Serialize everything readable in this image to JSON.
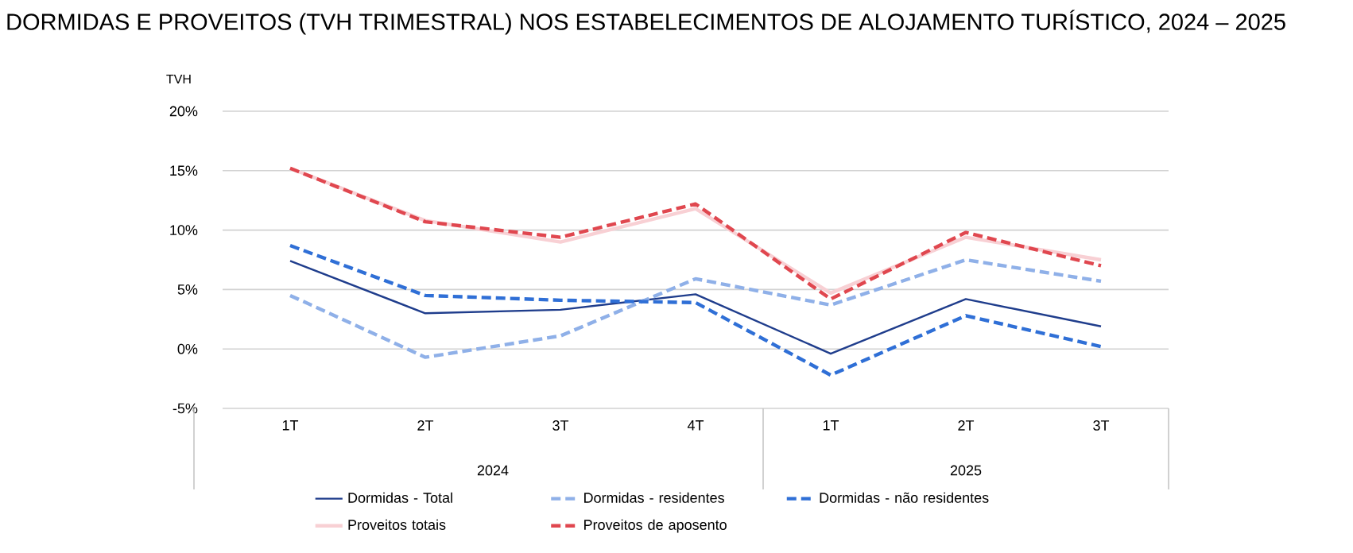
{
  "chart_data": {
    "type": "line",
    "title": "DORMIDAS E PROVEITOS (TVH TRIMESTRAL) NOS ESTABELECIMENTOS DE ALOJAMENTO TURÍSTICO, 2024 – 2025",
    "ylabel": "TVH",
    "categories": [
      "1T",
      "2T",
      "3T",
      "4T",
      "1T",
      "2T",
      "3T"
    ],
    "annotations": [
      "2024",
      "2025"
    ],
    "series": [
      {
        "name": "Dormidas - Total",
        "color": "#1f3d8c",
        "line_style": "solid",
        "values": [
          7.4,
          3.0,
          3.3,
          4.6,
          -0.4,
          4.2,
          1.9
        ]
      },
      {
        "name": "Dormidas - residentes",
        "color": "#8fb0e8",
        "line_style": "dashed",
        "values": [
          4.5,
          -0.7,
          1.1,
          5.9,
          3.7,
          7.5,
          5.7
        ]
      },
      {
        "name": "Dormidas - não residentes",
        "color": "#2f6fd6",
        "line_style": "dashed",
        "values": [
          8.7,
          4.5,
          4.1,
          3.9,
          -2.2,
          2.8,
          0.2
        ]
      },
      {
        "name": "Proveitos totais",
        "color": "#f8d0d4",
        "line_style": "solid",
        "values": [
          15.2,
          10.8,
          9.0,
          11.8,
          4.7,
          9.4,
          7.5
        ]
      },
      {
        "name": "Proveitos de aposento",
        "color": "#e0474f",
        "line_style": "dashed",
        "values": [
          15.2,
          10.7,
          9.4,
          12.2,
          4.2,
          9.8,
          7.0
        ]
      }
    ],
    "ylim": [
      -5,
      20
    ],
    "yticks": [
      {
        "value": -5,
        "label": "-5%"
      },
      {
        "value": 0,
        "label": "0%"
      },
      {
        "value": 5,
        "label": "5%"
      },
      {
        "value": 10,
        "label": "10%"
      },
      {
        "value": 15,
        "label": "15%"
      },
      {
        "value": 20,
        "label": "20%"
      }
    ],
    "grid": "y",
    "legend": "bottom",
    "marker": "none"
  }
}
